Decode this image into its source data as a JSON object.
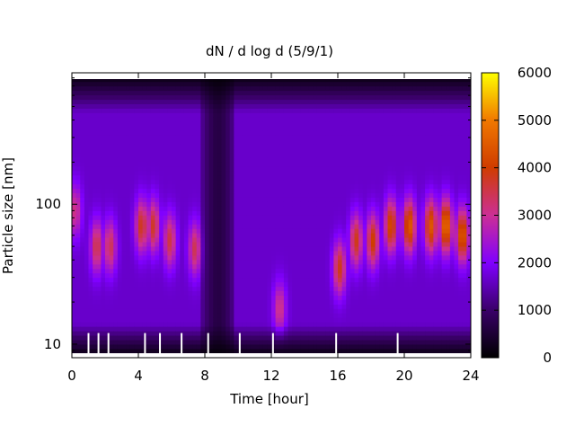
{
  "chart_data": {
    "type": "heatmap",
    "title": "dN / d log d (5/9/1)",
    "xlabel": "Time [hour]",
    "ylabel": "Particle size [nm]",
    "xlim": [
      0,
      24
    ],
    "ylim": [
      8,
      870
    ],
    "yscale": "log",
    "x_ticks": [
      0,
      4,
      8,
      12,
      16,
      20,
      24
    ],
    "x_tick_labels": [
      "0",
      "4",
      "8",
      "12",
      "16",
      "20",
      "24"
    ],
    "y_ticks": [
      10,
      100
    ],
    "y_tick_labels": [
      "10",
      "100"
    ],
    "colorbar": {
      "range": [
        0,
        6000
      ],
      "ticks": [
        0,
        1000,
        2000,
        3000,
        4000,
        5000,
        6000
      ],
      "tick_labels": [
        "0",
        "1000",
        "2000",
        "3000",
        "4000",
        "5000",
        "6000"
      ],
      "colormap": [
        "#000000",
        "#3a0069",
        "#8000ff",
        "#cc2f95",
        "#cf3c00",
        "#f07800",
        "#ffff00"
      ]
    },
    "grid": false,
    "background_value": 1500,
    "modes": [
      {
        "time": 0.2,
        "diameter": 90,
        "value": 3000
      },
      {
        "time": 1.5,
        "diameter": 50,
        "value": 3400
      },
      {
        "time": 2.3,
        "diameter": 50,
        "value": 3300
      },
      {
        "time": 4.2,
        "diameter": 70,
        "value": 3700
      },
      {
        "time": 4.9,
        "diameter": 70,
        "value": 3600
      },
      {
        "time": 5.9,
        "diameter": 55,
        "value": 3400
      },
      {
        "time": 7.4,
        "diameter": 48,
        "value": 3300
      },
      {
        "time": 12.5,
        "diameter": 18,
        "value": 3000
      },
      {
        "time": 16.1,
        "diameter": 35,
        "value": 3700
      },
      {
        "time": 17.1,
        "diameter": 55,
        "value": 3700
      },
      {
        "time": 18.1,
        "diameter": 55,
        "value": 3900
      },
      {
        "time": 19.2,
        "diameter": 70,
        "value": 4100
      },
      {
        "time": 20.3,
        "diameter": 70,
        "value": 4400
      },
      {
        "time": 21.6,
        "diameter": 70,
        "value": 4300
      },
      {
        "time": 22.5,
        "diameter": 70,
        "value": 4700
      },
      {
        "time": 23.5,
        "diameter": 60,
        "value": 4400
      }
    ],
    "low_concentration_period": [
      7.8,
      9.8
    ],
    "gap_marks": [
      1.0,
      1.6,
      2.2,
      4.4,
      5.3,
      6.6,
      8.2,
      10.1,
      12.1,
      15.9,
      19.6
    ]
  }
}
